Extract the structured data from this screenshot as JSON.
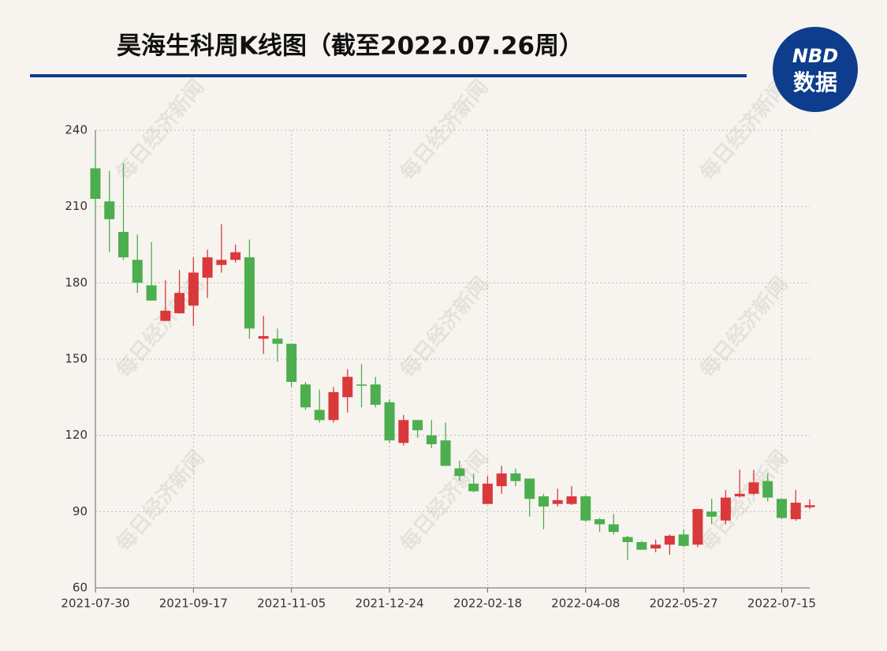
{
  "chart_data": {
    "type": "candlestick",
    "title": "昊海生科周K线图（截至2022.07.26周）",
    "logo": {
      "top": "NBD",
      "bottom": "数据"
    },
    "watermark": "每日经济新闻",
    "categories": [
      "2021-07-30",
      null,
      null,
      null,
      null,
      null,
      null,
      "2021-09-17",
      null,
      null,
      null,
      null,
      null,
      null,
      "2021-11-05",
      null,
      null,
      null,
      null,
      null,
      null,
      "2021-12-24",
      null,
      null,
      null,
      null,
      null,
      null,
      "2022-02-18",
      null,
      null,
      null,
      null,
      null,
      null,
      "2022-04-08",
      null,
      null,
      null,
      null,
      null,
      null,
      "2022-05-27",
      null,
      null,
      null,
      null,
      null,
      null,
      "2022-07-15",
      null,
      null
    ],
    "open": [
      225,
      212,
      200,
      189,
      179,
      165,
      168,
      171,
      182,
      187,
      189,
      190,
      158,
      158,
      156,
      140,
      130,
      126,
      135,
      140,
      140,
      133,
      117,
      126,
      120,
      118,
      107,
      101,
      93,
      100,
      105,
      103,
      96,
      93,
      93,
      96,
      87,
      85,
      80,
      78,
      75.5,
      77,
      81,
      77,
      90,
      86.5,
      96,
      97,
      102,
      95,
      87,
      91.7
    ],
    "high": [
      231,
      224,
      227,
      199,
      196,
      181,
      185,
      190,
      193,
      203,
      195,
      197,
      167,
      162,
      156,
      141,
      138,
      139,
      146,
      148,
      143,
      134,
      128,
      126,
      126,
      125,
      110,
      105,
      104,
      108,
      107,
      103,
      97,
      99,
      100,
      96.5,
      87.5,
      89,
      80.5,
      78.5,
      79,
      81,
      83,
      91,
      95,
      98.5,
      106.5,
      106.5,
      105,
      95,
      98.5,
      94.8
    ],
    "low": [
      207,
      192,
      189,
      176,
      173,
      165,
      168,
      163,
      174,
      184,
      188,
      158,
      152,
      149,
      139,
      130,
      125,
      125,
      129,
      131,
      131,
      117,
      116,
      119,
      115,
      108,
      102,
      97.6,
      93,
      97,
      100,
      88,
      83,
      92,
      92.6,
      86,
      82,
      81,
      71,
      75,
      74,
      73,
      76,
      76,
      85,
      85,
      95.5,
      96.5,
      94,
      87,
      86.4,
      91
    ],
    "close": [
      213,
      205,
      190,
      180,
      173,
      169,
      176,
      184,
      190,
      189,
      192,
      162,
      159,
      156,
      141,
      131,
      126,
      137,
      143,
      139.5,
      132,
      118,
      126,
      122,
      116.5,
      108,
      104,
      98,
      101,
      105,
      102,
      95,
      92,
      94.5,
      96,
      86.5,
      85,
      82,
      78,
      75,
      77,
      80.5,
      76.5,
      91,
      88,
      95.5,
      97,
      101.5,
      95.5,
      87.5,
      93.5,
      92.5
    ],
    "up_color": "#d9393b",
    "down_color": "#4cae4f",
    "ylim": [
      60,
      240
    ],
    "yticks": [
      60,
      90,
      120,
      150,
      180,
      210,
      240
    ],
    "grid": true
  }
}
